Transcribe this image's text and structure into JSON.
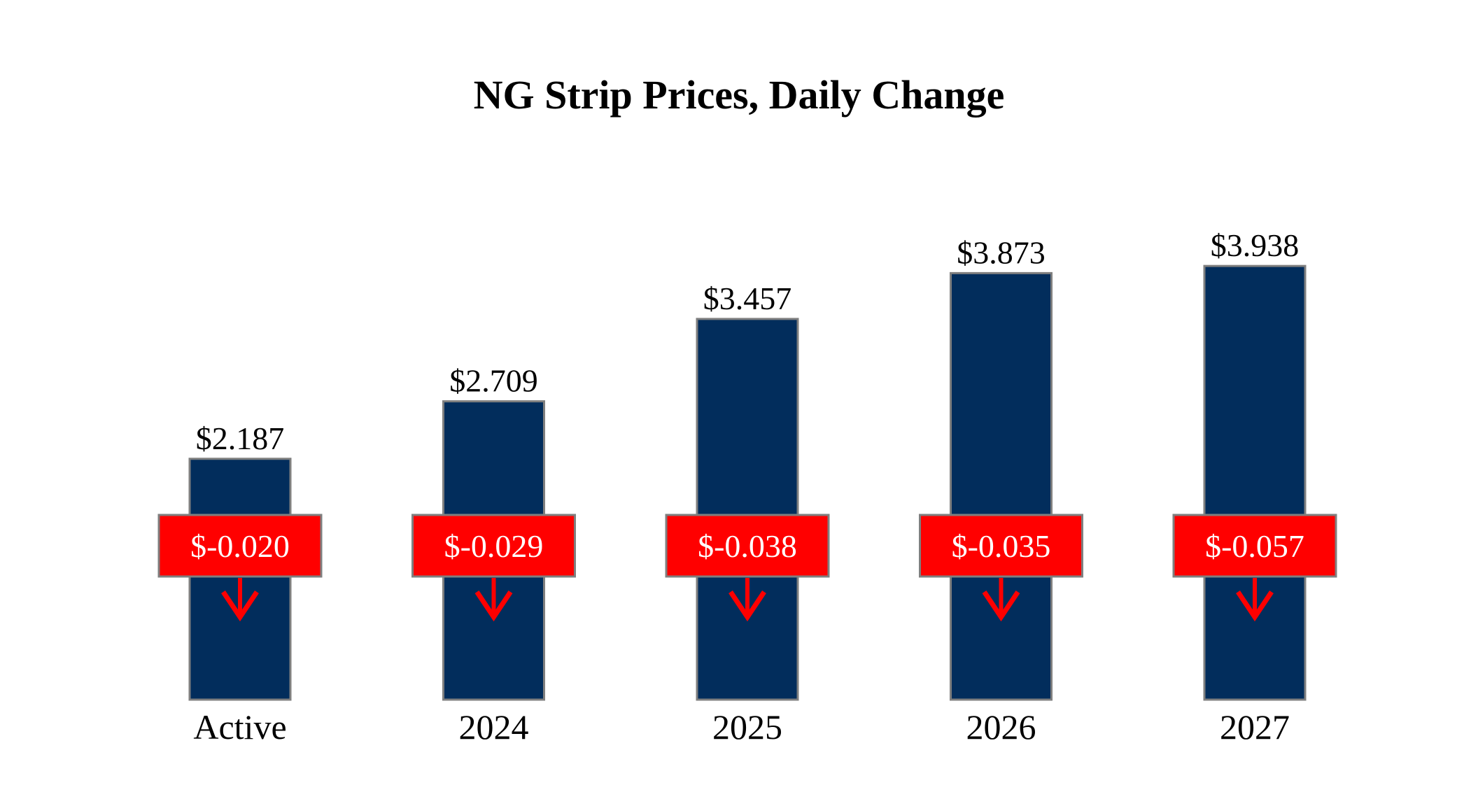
{
  "chart_data": {
    "type": "bar",
    "title": "NG Strip Prices, Daily Change",
    "categories": [
      "Active",
      "2024",
      "2025",
      "2026",
      "2027"
    ],
    "values": [
      2.187,
      2.709,
      3.457,
      3.873,
      3.938
    ],
    "value_labels": [
      "$2.187",
      "$2.709",
      "$3.457",
      "$3.873",
      "$3.938"
    ],
    "changes": [
      -0.02,
      -0.029,
      -0.038,
      -0.035,
      -0.057
    ],
    "change_labels": [
      "$-0.020",
      "$-0.029",
      "$-0.038",
      "$-0.035",
      "$-0.057"
    ],
    "change_direction": "down",
    "ylim": [
      0,
      4.2
    ],
    "grid": false,
    "legend": "none",
    "colors": {
      "bar": "#022d5c",
      "bar_border": "#7f7f7f",
      "change_box": "#ff0000",
      "change_text": "#ffffff",
      "arrow": "#ff0000",
      "text": "#000000"
    }
  }
}
